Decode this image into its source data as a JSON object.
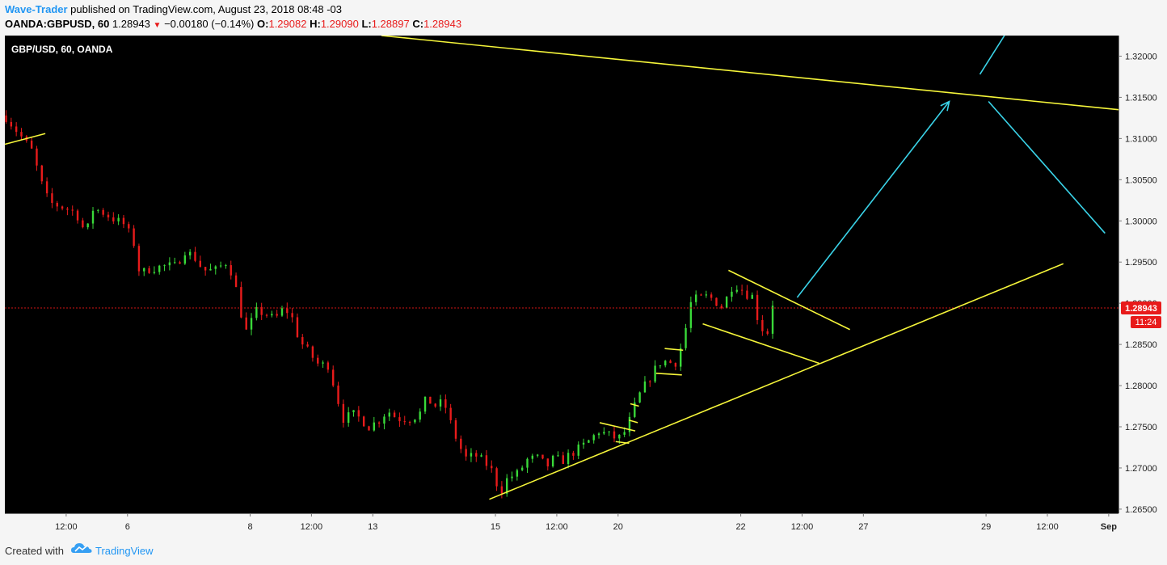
{
  "header": {
    "author": "Wave-Trader",
    "published_text": " published on TradingView.com, August 23, 2018 08:48 -03",
    "symbol_interval": "OANDA:GBPUSD, 60",
    "last_price": "1.28943",
    "change": "−0.00180 (−0.14%)",
    "open_label": "O:",
    "open": "1.29082",
    "high_label": "H:",
    "high": "1.29090",
    "low_label": "L:",
    "low": "1.28897",
    "close_label": "C:",
    "close": "1.28943"
  },
  "footer": {
    "created_with": "Created with",
    "brand": "TradingView"
  },
  "colors": {
    "background": "#000000",
    "up_candle": "#39d939",
    "down_candle": "#e81b1b",
    "trendline": "#f5f53a",
    "projection": "#3ad3e8",
    "price_line": "#d01515",
    "axis_bg": "#f5f5f5"
  },
  "chart_data": {
    "type": "candlestick",
    "title": "GBP/USD, 60, OANDA",
    "ylim": [
      1.2645,
      1.3225
    ],
    "y_ticks": [
      "1.32000",
      "1.31500",
      "1.31000",
      "1.30500",
      "1.30000",
      "1.29500",
      "1.29000",
      "1.28500",
      "1.28000",
      "1.27500",
      "1.27000",
      "1.26500"
    ],
    "x_ticks": [
      {
        "label": "12:00",
        "x": 0.5
      },
      {
        "label": "6",
        "x": 1.0
      },
      {
        "label": "8",
        "x": 2.0
      },
      {
        "label": "12:00",
        "x": 2.5
      },
      {
        "label": "13",
        "x": 3.0
      },
      {
        "label": "15",
        "x": 4.0
      },
      {
        "label": "12:00",
        "x": 4.5
      },
      {
        "label": "20",
        "x": 5.0
      },
      {
        "label": "22",
        "x": 6.0
      },
      {
        "label": "12:00",
        "x": 6.5
      },
      {
        "label": "27",
        "x": 7.0
      },
      {
        "label": "29",
        "x": 8.0
      },
      {
        "label": "12:00",
        "x": 8.5
      },
      {
        "label": "Sep",
        "x": 9.0
      }
    ],
    "xlim": [
      0.0,
      9.08
    ],
    "current_price": "1.28943",
    "countdown": "11:24",
    "price_path": [
      [
        0.0,
        1.3128
      ],
      [
        0.12,
        1.3105
      ],
      [
        0.22,
        1.3085
      ],
      [
        0.3,
        1.3045
      ],
      [
        0.36,
        1.3022
      ],
      [
        0.45,
        1.3018
      ],
      [
        0.55,
        1.3012
      ],
      [
        0.6,
        1.3005
      ],
      [
        0.66,
        1.2983
      ],
      [
        0.72,
        1.3015
      ],
      [
        0.78,
        1.3012
      ],
      [
        0.88,
        1.3003
      ],
      [
        0.98,
        1.2995
      ],
      [
        1.06,
        1.297
      ],
      [
        1.1,
        1.2935
      ],
      [
        1.18,
        1.2942
      ],
      [
        1.3,
        1.2945
      ],
      [
        1.4,
        1.2945
      ],
      [
        1.46,
        1.2965
      ],
      [
        1.55,
        1.2955
      ],
      [
        1.62,
        1.294
      ],
      [
        1.72,
        1.294
      ],
      [
        1.8,
        1.295
      ],
      [
        1.86,
        1.2935
      ],
      [
        1.93,
        1.2885
      ],
      [
        1.97,
        1.2865
      ],
      [
        2.05,
        1.289
      ],
      [
        2.12,
        1.2888
      ],
      [
        2.2,
        1.288
      ],
      [
        2.28,
        1.2895
      ],
      [
        2.35,
        1.288
      ],
      [
        2.4,
        1.2855
      ],
      [
        2.48,
        1.284
      ],
      [
        2.56,
        1.2825
      ],
      [
        2.64,
        1.2825
      ],
      [
        2.7,
        1.279
      ],
      [
        2.76,
        1.276
      ],
      [
        2.84,
        1.2765
      ],
      [
        2.9,
        1.276
      ],
      [
        2.97,
        1.275
      ],
      [
        3.05,
        1.2758
      ],
      [
        3.12,
        1.277
      ],
      [
        3.2,
        1.276
      ],
      [
        3.3,
        1.276
      ],
      [
        3.38,
        1.2765
      ],
      [
        3.44,
        1.2785
      ],
      [
        3.5,
        1.2775
      ],
      [
        3.58,
        1.278
      ],
      [
        3.64,
        1.2752
      ],
      [
        3.7,
        1.2728
      ],
      [
        3.76,
        1.2712
      ],
      [
        3.84,
        1.2715
      ],
      [
        3.9,
        1.2708
      ],
      [
        3.96,
        1.27
      ],
      [
        4.0,
        1.2685
      ],
      [
        4.04,
        1.267
      ],
      [
        4.1,
        1.2688
      ],
      [
        4.18,
        1.2693
      ],
      [
        4.26,
        1.271
      ],
      [
        4.34,
        1.2712
      ],
      [
        4.42,
        1.2702
      ],
      [
        4.48,
        1.2712
      ],
      [
        4.54,
        1.2708
      ],
      [
        4.62,
        1.2718
      ],
      [
        4.7,
        1.2725
      ],
      [
        4.78,
        1.2735
      ],
      [
        4.84,
        1.2745
      ],
      [
        4.92,
        1.274
      ],
      [
        5.0,
        1.2735
      ],
      [
        5.06,
        1.2745
      ],
      [
        5.1,
        1.276
      ],
      [
        5.16,
        1.2785
      ],
      [
        5.22,
        1.28
      ],
      [
        5.28,
        1.2815
      ],
      [
        5.34,
        1.2828
      ],
      [
        5.4,
        1.283
      ],
      [
        5.46,
        1.2825
      ],
      [
        5.52,
        1.285
      ],
      [
        5.56,
        1.2875
      ],
      [
        5.6,
        1.2905
      ],
      [
        5.66,
        1.2905
      ],
      [
        5.72,
        1.2908
      ],
      [
        5.78,
        1.2905
      ],
      [
        5.84,
        1.2895
      ],
      [
        5.9,
        1.291
      ],
      [
        5.94,
        1.2925
      ],
      [
        6.0,
        1.2918
      ],
      [
        6.04,
        1.2912
      ],
      [
        6.1,
        1.2908
      ],
      [
        6.14,
        1.288
      ],
      [
        6.18,
        1.2868
      ],
      [
        6.22,
        1.2865
      ],
      [
        6.26,
        1.29
      ]
    ],
    "trendlines": [
      {
        "name": "upper-resistance",
        "color": "trendline",
        "points": [
          [
            3.07,
            1.3225
          ],
          [
            9.08,
            1.3135
          ]
        ]
      },
      {
        "name": "lower-support",
        "color": "trendline",
        "points": [
          [
            3.95,
            1.2662
          ],
          [
            8.63,
            1.2948
          ]
        ]
      },
      {
        "name": "early-short",
        "color": "trendline",
        "points": [
          [
            0.0,
            1.3093
          ],
          [
            0.33,
            1.3106
          ]
        ]
      },
      {
        "name": "triangle-upper",
        "color": "trendline",
        "points": [
          [
            5.9,
            1.294
          ],
          [
            6.89,
            1.2868
          ]
        ]
      },
      {
        "name": "triangle-lower",
        "color": "trendline",
        "points": [
          [
            5.69,
            1.2875
          ],
          [
            6.64,
            1.2827
          ]
        ]
      },
      {
        "name": "flag-1-top",
        "color": "trendline",
        "points": [
          [
            4.85,
            1.2755
          ],
          [
            5.14,
            1.2745
          ]
        ]
      },
      {
        "name": "flag-1-bottom",
        "color": "trendline",
        "points": [
          [
            4.98,
            1.2732
          ],
          [
            5.09,
            1.273
          ]
        ]
      },
      {
        "name": "flag-2-a",
        "color": "trendline",
        "points": [
          [
            5.1,
            1.2778
          ],
          [
            5.17,
            1.2775
          ]
        ]
      },
      {
        "name": "flag-2-b",
        "color": "trendline",
        "points": [
          [
            5.09,
            1.2758
          ],
          [
            5.16,
            1.2755
          ]
        ]
      },
      {
        "name": "flag-3-top",
        "color": "trendline",
        "points": [
          [
            5.38,
            1.2845
          ],
          [
            5.53,
            1.2843
          ]
        ]
      },
      {
        "name": "flag-3-bottom",
        "color": "trendline",
        "points": [
          [
            5.31,
            1.2815
          ],
          [
            5.52,
            1.2813
          ]
        ]
      }
    ],
    "projections": [
      {
        "name": "wave-up",
        "color": "projection",
        "points": [
          [
            6.46,
            1.2907
          ],
          [
            7.7,
            1.3145
          ]
        ],
        "arrow": true
      },
      {
        "name": "wave-continue",
        "color": "projection",
        "points": [
          [
            7.95,
            1.3178
          ],
          [
            8.15,
            1.3225
          ]
        ],
        "arrow": false
      },
      {
        "name": "wave-down",
        "color": "projection",
        "points": [
          [
            8.02,
            1.3145
          ],
          [
            8.97,
            1.2985
          ]
        ],
        "arrow": false
      }
    ]
  }
}
